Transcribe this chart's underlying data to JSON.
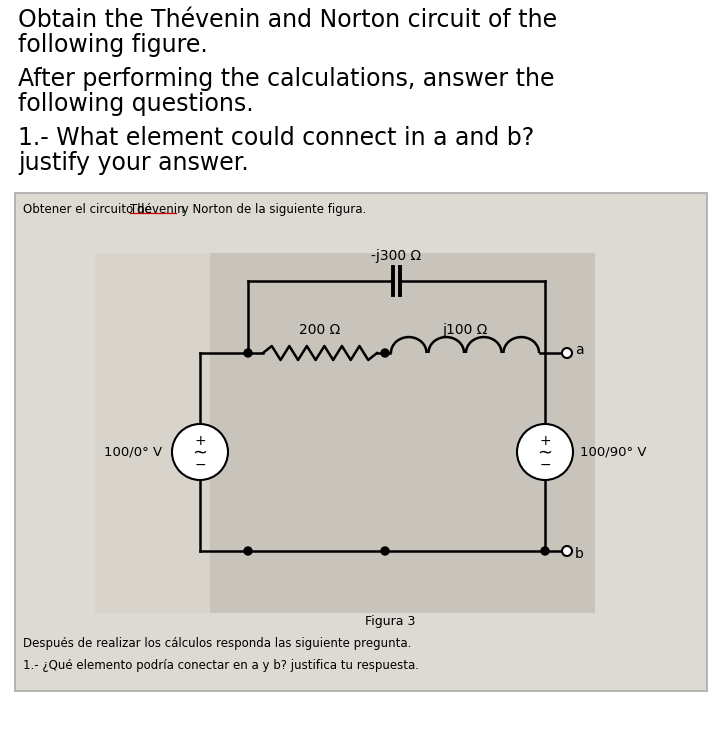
{
  "title_line1": "Obtain the Thévenin and Norton circuit of the",
  "title_line2": "following figure.",
  "subtitle_line1": "After performing the calculations, answer the",
  "subtitle_line2": "following questions.",
  "question_line1": "1.- What element could connect in a and b?",
  "question_line2": "justify your answer.",
  "box_label_pre": "Obtener el circuito de ",
  "box_label_thevenin": "Thévenin",
  "box_label_post": " y Norton de la siguiente figura.",
  "capacitor_label": "-j300 Ω",
  "resistor_label": "200 Ω",
  "inductor_label": "j100 Ω",
  "source1_label": "100/0° V",
  "source2_label": "100/90° V",
  "figura_label": "Figura 3",
  "bottom_text1": "Después de realizar los cálculos responda las siguiente pregunta.",
  "bottom_text2": "1.- ¿Qué elemento podría conectar en a y b? justifica tu respuesta.",
  "fig_width": 7.2,
  "fig_height": 7.43,
  "bg_color": "#ffffff",
  "box_bg": "#ddd9d3",
  "circuit_bg": "#c8c4bc"
}
